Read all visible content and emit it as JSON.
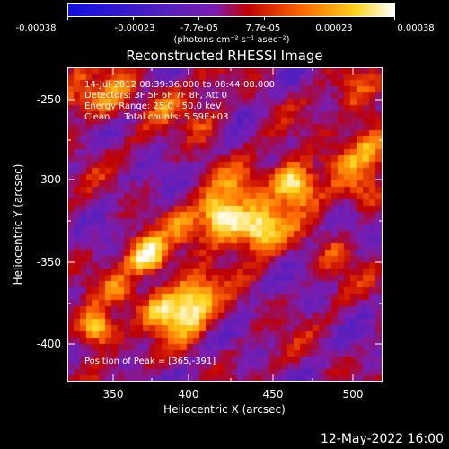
{
  "colorbar": {
    "tick_labels": [
      "-0.00038",
      "-0.00023",
      "-7.7e-05",
      "7.7e-05",
      "0.00023",
      "0.00038"
    ],
    "units": "(photons cm⁻² s⁻¹ asec⁻²)",
    "colors": [
      "#1010e0",
      "#5020c0",
      "#7a1db0",
      "#c00000",
      "#ff6a00",
      "#ffd21a",
      "#ffffff"
    ]
  },
  "title": "Reconstructed RHESSI Image",
  "info": {
    "line1": "14-Jul-2012 08:39:36.000 to 08:44:08.000",
    "line2": "Detectors: 3F 5F 6F 7F 8F, Att 0",
    "line3": "Energy Range: 25.0 - 50.0 keV",
    "line4": "Clean     Total counts: 5.59E+03",
    "peak": "Position of Peak = [365,-391]"
  },
  "axes": {
    "x_label": "Heliocentric X (arcsec)",
    "y_label": "Heliocentric Y (arcsec)",
    "x_ticks": [
      "350",
      "400",
      "450",
      "500"
    ],
    "y_ticks": [
      "-250",
      "-300",
      "-350",
      "-400"
    ],
    "x_range": [
      322,
      514
    ],
    "y_range": [
      -422,
      -229
    ]
  },
  "datestamp": "12-May-2022 16:00"
}
